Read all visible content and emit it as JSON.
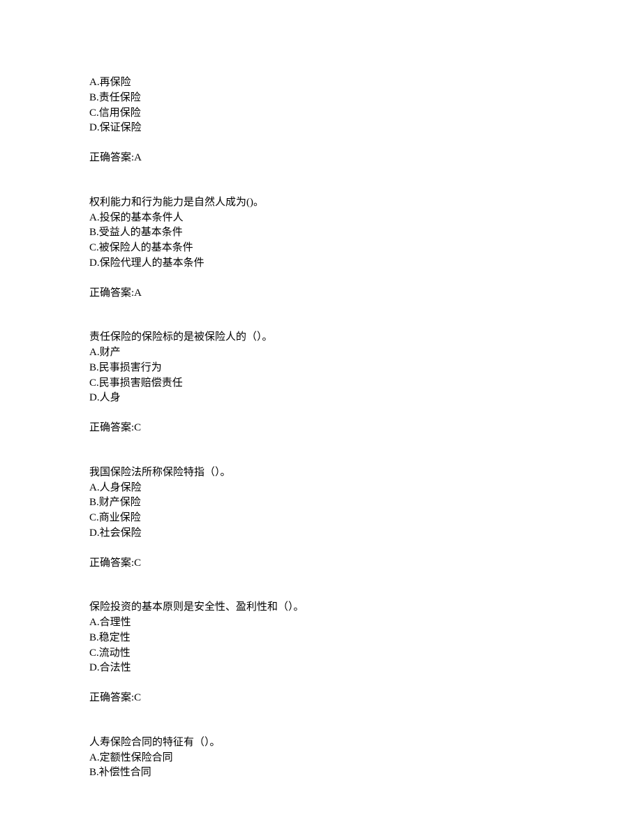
{
  "questions": [
    {
      "stem": "",
      "options": [
        "A.再保险",
        "B.责任保险",
        "C.信用保险",
        "D.保证保险"
      ],
      "answer_label": "正确答案:A"
    },
    {
      "stem": "权利能力和行为能力是自然人成为()。",
      "options": [
        "A.投保的基本条件人",
        "B.受益人的基本条件",
        "C.被保险人的基本条件",
        "D.保险代理人的基本条件"
      ],
      "answer_label": "正确答案:A"
    },
    {
      "stem": "责任保险的保险标的是被保险人的（）。",
      "options": [
        "A.财产",
        "B.民事损害行为",
        "C.民事损害赔偿责任",
        "D.人身"
      ],
      "answer_label": "正确答案:C"
    },
    {
      "stem": "我国保险法所称保险特指（）。",
      "options": [
        "A.人身保险",
        "B.财产保险",
        "C.商业保险",
        "D.社会保险"
      ],
      "answer_label": "正确答案:C"
    },
    {
      "stem": "保险投资的基本原则是安全性、盈利性和（）。",
      "options": [
        "A.合理性",
        "B.稳定性",
        "C.流动性",
        "D.合法性"
      ],
      "answer_label": "正确答案:C"
    },
    {
      "stem": "人寿保险合同的特征有（）。",
      "options": [
        "A.定额性保险合同",
        "B.补偿性合同"
      ],
      "answer_label": ""
    }
  ]
}
